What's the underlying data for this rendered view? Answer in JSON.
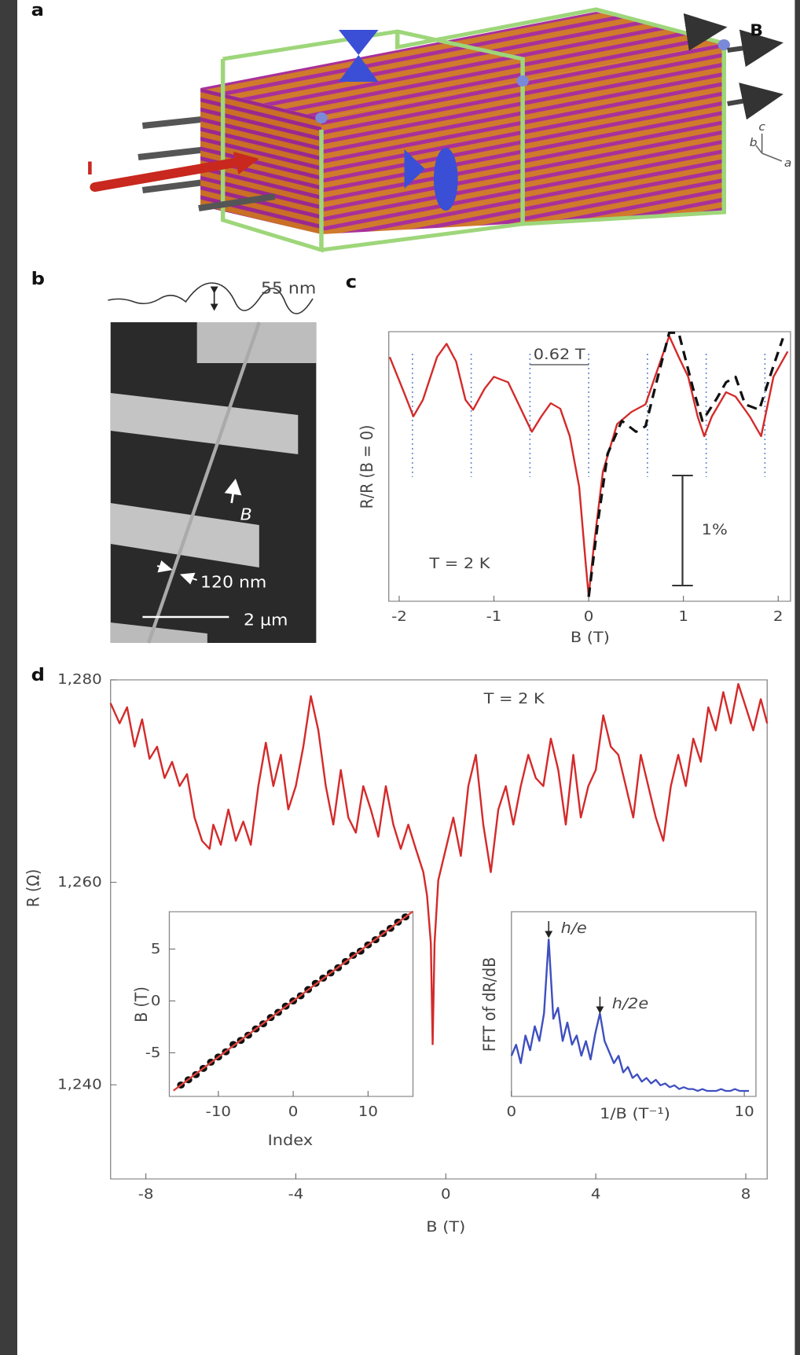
{
  "figure": {
    "panels": [
      "a",
      "b",
      "c",
      "d"
    ],
    "diagram_labels": {
      "field": "B",
      "current": "I",
      "axis_c": "c",
      "axis_b": "b",
      "axis_a": "a"
    },
    "sem_labels": {
      "height": "55 nm",
      "field": "B",
      "width": "120 nm",
      "scale": "2 µm"
    }
  },
  "chart_data": [
    {
      "type": "line",
      "xlabel": "B (T)",
      "ylabel": "R/R (B = 0)",
      "annotation": "T = 2 K",
      "xlim": [
        -2.11,
        2.13
      ],
      "ylim": [
        -0.04,
        2.41
      ],
      "xticks": [
        -2,
        -1,
        0,
        1,
        2
      ],
      "series": [
        {
          "color": "#d42a2a",
          "x": [
            -2.1,
            -1.95,
            -1.85,
            -1.75,
            -1.6,
            -1.5,
            -1.4,
            -1.3,
            -1.22,
            -1.1,
            -1.0,
            -0.85,
            -0.7,
            -0.6,
            -0.5,
            -0.4,
            -0.3,
            -0.2,
            -0.1,
            -0.03,
            0,
            0.05,
            0.15,
            0.3,
            0.45,
            0.6,
            0.7,
            0.85,
            0.95,
            1.05,
            1.15,
            1.22,
            1.3,
            1.45,
            1.55,
            1.7,
            1.82,
            1.95,
            2.1
          ],
          "values": [
            2.18,
            1.86,
            1.64,
            1.79,
            2.18,
            2.3,
            2.14,
            1.79,
            1.7,
            1.89,
            2.0,
            1.95,
            1.68,
            1.5,
            1.64,
            1.76,
            1.71,
            1.46,
            1.0,
            0.29,
            0.01,
            0.43,
            1.14,
            1.57,
            1.68,
            1.75,
            2.0,
            2.37,
            2.18,
            2.0,
            1.64,
            1.46,
            1.64,
            1.86,
            1.82,
            1.64,
            1.46,
            2.0,
            2.23
          ]
        },
        {
          "color": "#111111",
          "dashed": true,
          "x": [
            0,
            0.1,
            0.2,
            0.35,
            0.5,
            0.6,
            0.7,
            0.85,
            0.95,
            1.1,
            1.2,
            1.35,
            1.45,
            1.55,
            1.65,
            1.8,
            1.95,
            2.05
          ],
          "values": [
            0.0,
            0.7,
            1.3,
            1.6,
            1.5,
            1.55,
            1.9,
            2.4,
            2.4,
            1.9,
            1.6,
            1.8,
            1.95,
            2.0,
            1.75,
            1.7,
            2.1,
            2.35
          ]
        }
      ],
      "period_lines": [
        -1.86,
        -1.24,
        -0.62,
        0,
        0.62,
        1.24,
        1.86
      ],
      "period_label": "0.62 T",
      "scale_bar": {
        "value": 1,
        "label": "1%"
      }
    },
    {
      "type": "line",
      "xlabel": "B (T)",
      "ylabel": "R (Ω)",
      "annotation": "T = 2 K",
      "xlim": [
        -8.94,
        8.57
      ],
      "ylim": [
        1230.7,
        1280
      ],
      "xticks": [
        -8,
        -4,
        0,
        4,
        8
      ],
      "yticks": [
        {
          "value": 1240,
          "label": "1,240"
        },
        {
          "value": 1260,
          "label": "1,260"
        },
        {
          "value": 1280,
          "label": "1,280"
        }
      ],
      "series": [
        {
          "color": "#d42a2a",
          "x": [
            -8.94,
            -8.7,
            -8.5,
            -8.3,
            -8.1,
            -7.9,
            -7.7,
            -7.5,
            -7.3,
            -7.1,
            -6.9,
            -6.7,
            -6.5,
            -6.3,
            -6.2,
            -6.0,
            -5.8,
            -5.6,
            -5.4,
            -5.2,
            -5.0,
            -4.8,
            -4.6,
            -4.4,
            -4.2,
            -4.0,
            -3.8,
            -3.6,
            -3.4,
            -3.2,
            -3.0,
            -2.8,
            -2.6,
            -2.4,
            -2.2,
            -2.0,
            -1.8,
            -1.6,
            -1.4,
            -1.2,
            -1.0,
            -0.8,
            -0.6,
            -0.5,
            -0.4,
            -0.35,
            -0.3,
            -0.2,
            0,
            0.2,
            0.4,
            0.6,
            0.8,
            1.0,
            1.2,
            1.4,
            1.6,
            1.8,
            2.0,
            2.2,
            2.4,
            2.6,
            2.8,
            3.0,
            3.2,
            3.4,
            3.6,
            3.8,
            4.0,
            4.2,
            4.4,
            4.6,
            4.8,
            5.0,
            5.2,
            5.4,
            5.6,
            5.8,
            6.0,
            6.2,
            6.4,
            6.6,
            6.8,
            7.0,
            7.2,
            7.4,
            7.6,
            7.8,
            8.0,
            8.2,
            8.4,
            8.57
          ],
          "values": [
            1277.7,
            1275.7,
            1277.3,
            1273.4,
            1276.1,
            1272.2,
            1273.4,
            1270.3,
            1271.9,
            1269.5,
            1270.7,
            1266.4,
            1264.1,
            1263.3,
            1265.7,
            1263.7,
            1267.2,
            1264.1,
            1266.0,
            1263.7,
            1269.5,
            1273.8,
            1269.5,
            1272.6,
            1267.2,
            1269.5,
            1273.4,
            1278.4,
            1275.0,
            1269.5,
            1265.7,
            1271.1,
            1266.4,
            1264.9,
            1269.5,
            1267.2,
            1264.5,
            1269.5,
            1265.7,
            1263.3,
            1265.7,
            1263.3,
            1261.0,
            1258.7,
            1254.0,
            1244.0,
            1254.0,
            1260.2,
            1263.3,
            1266.4,
            1262.6,
            1269.5,
            1272.6,
            1265.7,
            1261.0,
            1267.2,
            1269.5,
            1265.7,
            1269.5,
            1272.6,
            1270.3,
            1269.5,
            1274.2,
            1271.1,
            1265.7,
            1272.6,
            1266.4,
            1269.5,
            1271.1,
            1276.5,
            1273.4,
            1272.6,
            1269.5,
            1266.4,
            1272.6,
            1269.5,
            1266.4,
            1264.1,
            1269.5,
            1272.6,
            1269.5,
            1274.2,
            1271.9,
            1277.3,
            1275.0,
            1278.8,
            1275.7,
            1279.6,
            1277.3,
            1275.0,
            1278.1,
            1275.7
          ]
        }
      ]
    },
    {
      "type": "scatter",
      "xlabel": "Index",
      "ylabel": "B (T)",
      "xlim": [
        -16.55,
        16.0
      ],
      "ylim": [
        -9.2,
        8.6
      ],
      "xticks": [
        -10,
        0,
        10
      ],
      "yticks": [
        -5,
        0,
        5
      ],
      "series": [
        {
          "type": "scatter",
          "color": "#111111",
          "x": [
            -15,
            -14,
            -13,
            -12,
            -11,
            -10,
            -9,
            -8,
            -7,
            -6,
            -5,
            -4,
            -3,
            -2,
            -1,
            0,
            1,
            2,
            3,
            4,
            5,
            6,
            7,
            8,
            9,
            10,
            11,
            12,
            13,
            14,
            15
          ],
          "values": [
            -8.1,
            -7.6,
            -7.1,
            -6.5,
            -5.9,
            -5.4,
            -4.9,
            -4.2,
            -3.8,
            -3.3,
            -2.7,
            -2.2,
            -1.6,
            -1.1,
            -0.5,
            0.0,
            0.5,
            1.1,
            1.7,
            2.2,
            2.7,
            3.2,
            3.8,
            4.4,
            4.8,
            5.4,
            5.9,
            6.5,
            7.0,
            7.6,
            8.1
          ]
        },
        {
          "type": "line",
          "color": "#e0403a",
          "x": [
            -16,
            16
          ],
          "values": [
            -8.64,
            8.64
          ]
        }
      ]
    },
    {
      "type": "line",
      "xlabel": "1/B (T⁻¹)",
      "ylabel": "FFT of dR/dB",
      "xlim": [
        0,
        10.5
      ],
      "ylim": [
        0,
        1
      ],
      "xticks": [
        0,
        10
      ],
      "series": [
        {
          "color": "#3f4fc0",
          "x": [
            0,
            0.2,
            0.4,
            0.6,
            0.8,
            1.0,
            1.2,
            1.4,
            1.6,
            1.8,
            2.0,
            2.2,
            2.4,
            2.6,
            2.8,
            3.0,
            3.2,
            3.4,
            3.6,
            3.8,
            4.0,
            4.2,
            4.4,
            4.6,
            4.8,
            5.0,
            5.2,
            5.4,
            5.6,
            5.8,
            6.0,
            6.2,
            6.4,
            6.6,
            6.8,
            7.0,
            7.2,
            7.4,
            7.6,
            7.8,
            8.0,
            8.2,
            8.4,
            8.6,
            8.8,
            9.0,
            9.2,
            9.4,
            9.6,
            9.8,
            10.0,
            10.2
          ],
          "values": [
            0.22,
            0.28,
            0.18,
            0.33,
            0.25,
            0.38,
            0.3,
            0.45,
            0.85,
            0.42,
            0.48,
            0.3,
            0.4,
            0.28,
            0.33,
            0.22,
            0.3,
            0.2,
            0.34,
            0.45,
            0.3,
            0.24,
            0.18,
            0.22,
            0.13,
            0.16,
            0.1,
            0.12,
            0.08,
            0.1,
            0.07,
            0.09,
            0.06,
            0.07,
            0.05,
            0.06,
            0.04,
            0.05,
            0.04,
            0.04,
            0.03,
            0.04,
            0.03,
            0.03,
            0.03,
            0.04,
            0.03,
            0.03,
            0.04,
            0.03,
            0.03,
            0.03
          ]
        }
      ],
      "peaks": [
        {
          "x": 1.6,
          "label": "h/e"
        },
        {
          "x": 3.8,
          "label": "h/2e"
        }
      ]
    }
  ]
}
